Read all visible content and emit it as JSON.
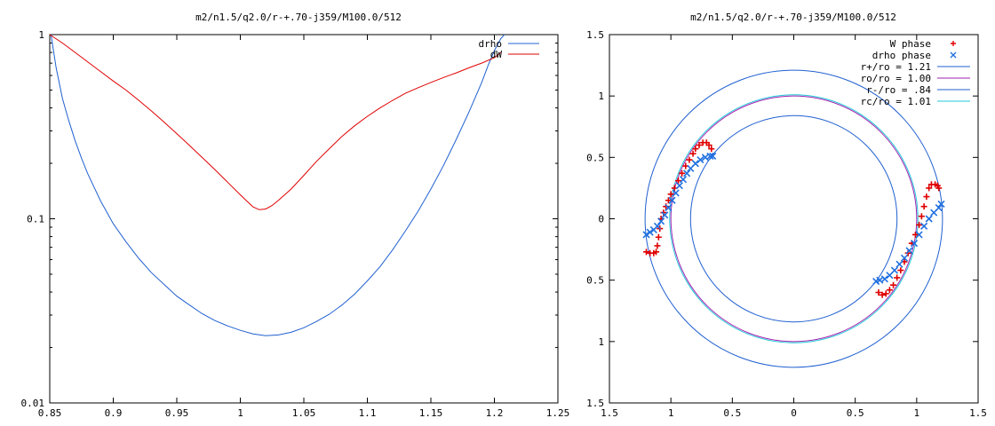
{
  "chart_data": [
    {
      "type": "line",
      "title": "m2/n1.5/q2.0/r-+.70-j359/M100.0/512",
      "xlabel": "",
      "ylabel": "",
      "xlim": [
        0.85,
        1.25
      ],
      "ylim": [
        0.01,
        1
      ],
      "ylog": true,
      "xticks": [
        0.85,
        0.9,
        0.95,
        1,
        1.05,
        1.1,
        1.15,
        1.2,
        1.25
      ],
      "xtick_labels": [
        "0.85",
        "0.9",
        "0.95",
        "1",
        "1.05",
        "1.1",
        "1.15",
        "1.2",
        "1.25"
      ],
      "yticks": [
        0.01,
        0.1,
        1
      ],
      "ytick_labels": [
        "0.01",
        "0.1",
        "1"
      ],
      "grid": false,
      "legend": "top-right",
      "series": [
        {
          "name": "drho",
          "color": "#2060d0",
          "x": [
            0.851,
            0.855,
            0.86,
            0.865,
            0.87,
            0.875,
            0.88,
            0.89,
            0.9,
            0.91,
            0.92,
            0.93,
            0.94,
            0.95,
            0.96,
            0.97,
            0.98,
            0.99,
            1.0,
            1.01,
            1.02,
            1.03,
            1.04,
            1.05,
            1.06,
            1.07,
            1.08,
            1.09,
            1.1,
            1.11,
            1.12,
            1.13,
            1.14,
            1.15,
            1.16,
            1.17,
            1.18,
            1.19,
            1.195,
            1.2,
            1.205,
            1.208
          ],
          "y": [
            1.0,
            0.66,
            0.45,
            0.34,
            0.265,
            0.213,
            0.175,
            0.125,
            0.094,
            0.075,
            0.061,
            0.051,
            0.044,
            0.038,
            0.034,
            0.0305,
            0.028,
            0.0262,
            0.0248,
            0.0237,
            0.0232,
            0.0234,
            0.0242,
            0.0256,
            0.0277,
            0.0303,
            0.034,
            0.039,
            0.046,
            0.055,
            0.068,
            0.086,
            0.11,
            0.145,
            0.195,
            0.27,
            0.38,
            0.55,
            0.68,
            0.82,
            0.95,
            1.0
          ]
        },
        {
          "name": "dW",
          "color": "#e00000",
          "x": [
            0.85,
            0.86,
            0.87,
            0.88,
            0.89,
            0.9,
            0.91,
            0.92,
            0.93,
            0.94,
            0.95,
            0.96,
            0.97,
            0.98,
            0.99,
            1.0,
            1.005,
            1.01,
            1.015,
            1.02,
            1.025,
            1.03,
            1.04,
            1.05,
            1.06,
            1.07,
            1.08,
            1.09,
            1.1,
            1.11,
            1.12,
            1.13,
            1.14,
            1.15,
            1.16,
            1.17,
            1.18,
            1.19,
            1.2,
            1.205
          ],
          "y": [
            1.0,
            0.9,
            0.8,
            0.71,
            0.63,
            0.56,
            0.5,
            0.44,
            0.385,
            0.335,
            0.29,
            0.25,
            0.215,
            0.185,
            0.158,
            0.135,
            0.125,
            0.116,
            0.112,
            0.113,
            0.118,
            0.126,
            0.145,
            0.172,
            0.205,
            0.24,
            0.28,
            0.32,
            0.36,
            0.4,
            0.44,
            0.48,
            0.515,
            0.55,
            0.585,
            0.62,
            0.66,
            0.7,
            0.75,
            0.8
          ]
        }
      ]
    },
    {
      "type": "scatter",
      "title": "m2/n1.5/q2.0/r-+.70-j359/M100.0/512",
      "xlabel": "",
      "ylabel": "",
      "xlim": [
        -1.5,
        1.5
      ],
      "ylim": [
        -1.5,
        1.5
      ],
      "xticks": [
        -1.5,
        -1,
        -0.5,
        0,
        0.5,
        1,
        1.5
      ],
      "xtick_labels": [
        "1.5",
        "1",
        "0.5",
        "0",
        "0.5",
        "1",
        "1.5"
      ],
      "yticks": [
        -1.5,
        -1,
        -0.5,
        0,
        0.5,
        1,
        1.5
      ],
      "ytick_labels": [
        "1.5",
        "1",
        "0.5",
        "0",
        "0.5",
        "1",
        "1.5"
      ],
      "grid": false,
      "legend": "top-right",
      "series": [
        {
          "name": "W phase",
          "color": "#e00000",
          "marker": "plus",
          "x": [
            -1.2,
            -1.17,
            -1.14,
            -1.12,
            -1.11,
            -1.1,
            -1.09,
            -1.08,
            -1.06,
            -1.04,
            -1.02,
            -1.0,
            -0.97,
            -0.94,
            -0.91,
            -0.88,
            -0.85,
            -0.82,
            -0.8,
            -0.77,
            -0.74,
            -0.71,
            -0.69,
            -0.67,
            0.69,
            0.72,
            0.75,
            0.78,
            0.81,
            0.84,
            0.87,
            0.9,
            0.93,
            0.96,
            0.99,
            1.02,
            1.04,
            1.06,
            1.08,
            1.1,
            1.12,
            1.15,
            1.17,
            1.18
          ],
          "y": [
            -0.27,
            -0.28,
            -0.28,
            -0.27,
            -0.22,
            -0.15,
            -0.08,
            0.0,
            0.05,
            0.1,
            0.15,
            0.2,
            0.25,
            0.31,
            0.37,
            0.43,
            0.48,
            0.53,
            0.57,
            0.6,
            0.62,
            0.62,
            0.6,
            0.57,
            -0.6,
            -0.62,
            -0.61,
            -0.58,
            -0.54,
            -0.48,
            -0.42,
            -0.35,
            -0.28,
            -0.2,
            -0.13,
            -0.05,
            0.02,
            0.1,
            0.18,
            0.25,
            0.28,
            0.28,
            0.27,
            0.25
          ]
        },
        {
          "name": "drho phase",
          "color": "#2070e0",
          "marker": "x",
          "x": [
            -1.2,
            -1.17,
            -1.14,
            -1.11,
            -1.08,
            -1.05,
            -1.02,
            -0.99,
            -0.96,
            -0.93,
            -0.9,
            -0.87,
            -0.84,
            -0.8,
            -0.76,
            -0.72,
            -0.68,
            -0.66,
            0.67,
            0.7,
            0.74,
            0.78,
            0.82,
            0.86,
            0.9,
            0.94,
            0.98,
            1.02,
            1.06,
            1.1,
            1.14,
            1.18,
            1.2
          ],
          "y": [
            -0.13,
            -0.11,
            -0.09,
            -0.06,
            -0.02,
            0.03,
            0.09,
            0.15,
            0.21,
            0.27,
            0.32,
            0.37,
            0.41,
            0.45,
            0.48,
            0.5,
            0.51,
            0.51,
            -0.51,
            -0.5,
            -0.49,
            -0.46,
            -0.42,
            -0.37,
            -0.32,
            -0.26,
            -0.2,
            -0.13,
            -0.06,
            0.0,
            0.05,
            0.09,
            0.12
          ]
        }
      ],
      "circles": [
        {
          "name": "r+/ro = 1.21",
          "radius": 1.21,
          "color": "#2060d0"
        },
        {
          "name": "ro/ro = 1.00",
          "radius": 1.0,
          "color": "#a020b0"
        },
        {
          "name": "r-/ro = .84",
          "radius": 0.84,
          "color": "#2060d0"
        },
        {
          "name": "rc/ro = 1.01",
          "radius": 1.01,
          "color": "#20c8d8"
        }
      ]
    }
  ]
}
